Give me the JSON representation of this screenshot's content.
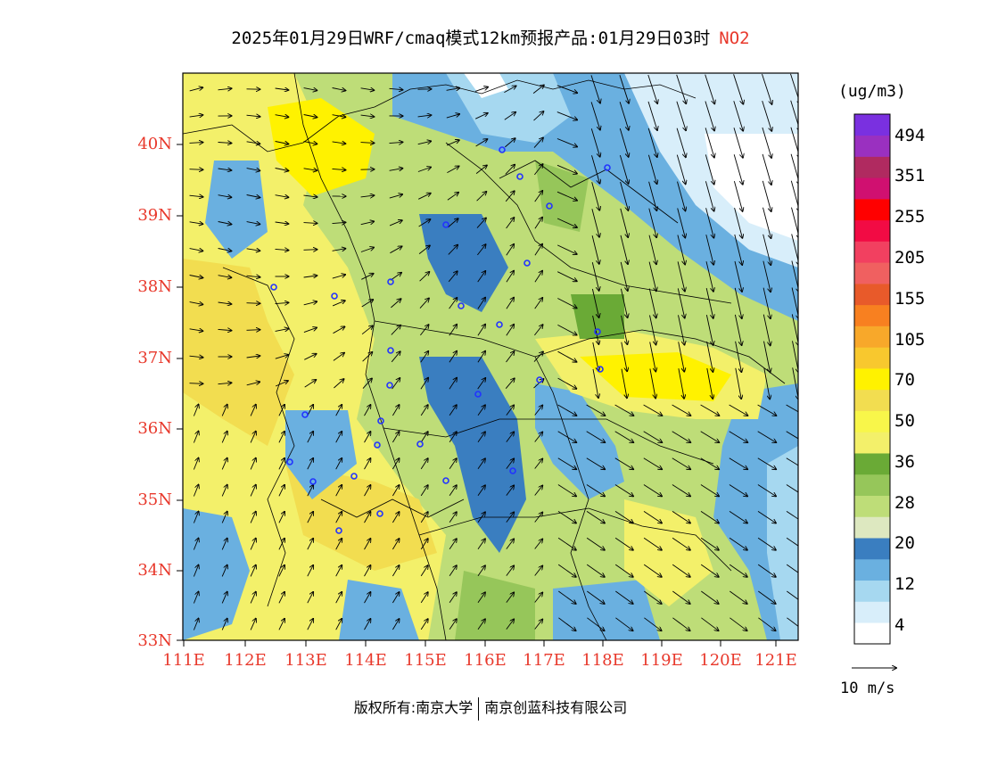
{
  "title": {
    "main": "2025年01月29日WRF/cmaq模式12km预报产品:01月29日03时",
    "species": "NO2"
  },
  "colors": {
    "label_red": "#e8382b",
    "city_marker": "#2233ff",
    "border": "#000000"
  },
  "axes": {
    "lat_labels": [
      "40N",
      "39N",
      "38N",
      "37N",
      "36N",
      "35N",
      "34N",
      "33N"
    ],
    "lon_labels": [
      "111E",
      "112E",
      "113E",
      "114E",
      "115E",
      "116E",
      "117E",
      "118E",
      "119E",
      "120E",
      "121E"
    ]
  },
  "legend": {
    "unit": "(ug/m3)",
    "labels": [
      "494",
      "351",
      "255",
      "205",
      "155",
      "105",
      "70",
      "50",
      "36",
      "28",
      "20",
      "12",
      "4"
    ],
    "colors": [
      "#ffffff",
      "#d8eefa",
      "#a6d8f0",
      "#6ab0e0",
      "#3a7ec0",
      "#dde8c0",
      "#bedd78",
      "#96c65a",
      "#6aaa36",
      "#f3f06a",
      "#f8f64a",
      "#f2dd50",
      "#fff200",
      "#f8c82e",
      "#f8a82a",
      "#f88020",
      "#e85a2a",
      "#f06060",
      "#f24060",
      "#f20b44",
      "#ff0000",
      "#d01070",
      "#b02a60",
      "#9a30c0",
      "#7a30e0"
    ]
  },
  "wind_scale": {
    "label": "10 m/s"
  },
  "credits": {
    "left": "版权所有:南京大学",
    "right": "南京创蓝科技有限公司"
  }
}
